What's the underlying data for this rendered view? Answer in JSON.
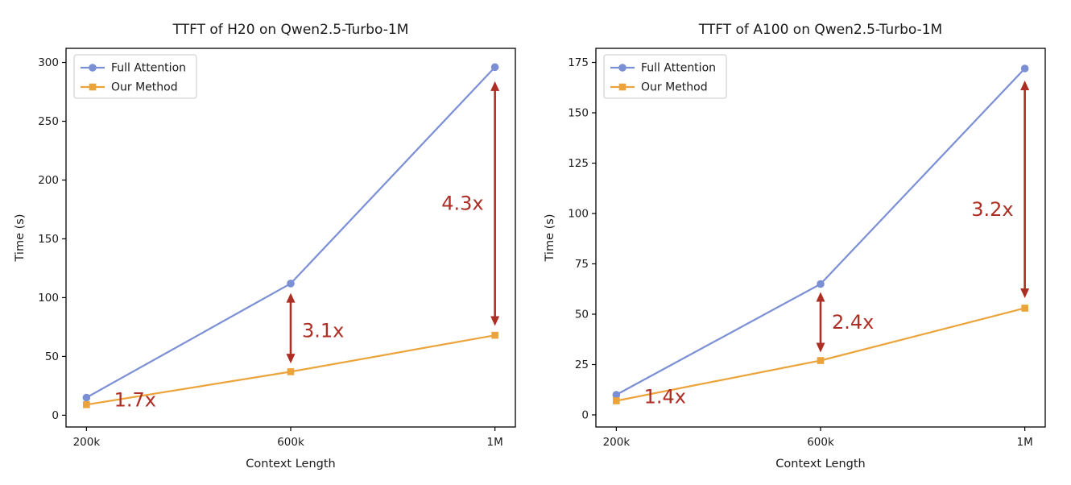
{
  "figure": {
    "background": "#ffffff"
  },
  "style": {
    "axis_color": "#000000",
    "text_color": "#1a1a1a",
    "annotation_color": "#ad2e24",
    "legend_border": "#c9c9c9",
    "legend_background": "#ffffff"
  },
  "chart_data": [
    {
      "type": "line",
      "title": "TTFT of H20 on Qwen2.5-Turbo-1M",
      "xlabel": "Context Length",
      "ylabel": "Time (s)",
      "categories": [
        "200k",
        "600k",
        "1M"
      ],
      "xlim": [
        -0.1,
        2.1
      ],
      "ylim": [
        -10,
        312
      ],
      "yticks": [
        0,
        50,
        100,
        150,
        200,
        250,
        300
      ],
      "grid": false,
      "legend_position": "upper-left",
      "series": [
        {
          "name": "Full Attention",
          "color": "#7b8fd4",
          "marker": "circle",
          "values": [
            15,
            112,
            296
          ]
        },
        {
          "name": "Our Method",
          "color": "#eba43b",
          "marker": "square",
          "values": [
            9,
            37,
            68
          ]
        }
      ],
      "annotations": [
        {
          "label": "1.7x",
          "x": 0,
          "x_offset": 0.08,
          "side": "right",
          "label_y": 13
        },
        {
          "label": "3.1x",
          "x": 1,
          "side": "right",
          "label_y": 72,
          "arrow": {
            "from": 44,
            "to": 104
          }
        },
        {
          "label": "4.3x",
          "x": 2,
          "side": "left",
          "label_y": 180,
          "arrow": {
            "from": 76,
            "to": 284
          }
        }
      ]
    },
    {
      "type": "line",
      "title": "TTFT of A100 on Qwen2.5-Turbo-1M",
      "xlabel": "Context Length",
      "ylabel": "Time (s)",
      "categories": [
        "200k",
        "600k",
        "1M"
      ],
      "xlim": [
        -0.1,
        2.1
      ],
      "ylim": [
        -6,
        182
      ],
      "yticks": [
        0,
        25,
        50,
        75,
        100,
        125,
        150,
        175
      ],
      "grid": false,
      "legend_position": "upper-left",
      "series": [
        {
          "name": "Full Attention",
          "color": "#7b8fd4",
          "marker": "circle",
          "values": [
            10,
            65,
            172
          ]
        },
        {
          "name": "Our Method",
          "color": "#eba43b",
          "marker": "square",
          "values": [
            7,
            27,
            53
          ]
        }
      ],
      "annotations": [
        {
          "label": "1.4x",
          "x": 0,
          "x_offset": 0.08,
          "side": "right",
          "label_y": 9
        },
        {
          "label": "2.4x",
          "x": 1,
          "side": "right",
          "label_y": 46,
          "arrow": {
            "from": 31,
            "to": 61
          }
        },
        {
          "label": "3.2x",
          "x": 2,
          "side": "left",
          "label_y": 102,
          "arrow": {
            "from": 58,
            "to": 166
          }
        }
      ]
    }
  ]
}
